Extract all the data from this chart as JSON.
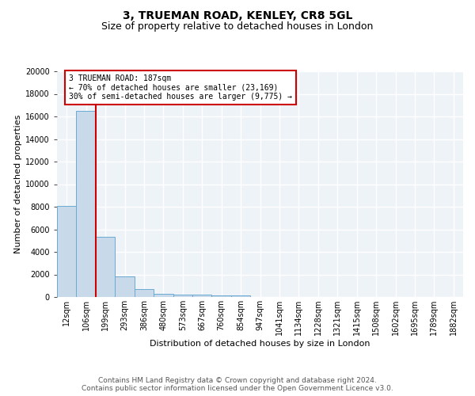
{
  "title": "3, TRUEMAN ROAD, KENLEY, CR8 5GL",
  "subtitle": "Size of property relative to detached houses in London",
  "xlabel": "Distribution of detached houses by size in London",
  "ylabel": "Number of detached properties",
  "bin_labels": [
    "12sqm",
    "106sqm",
    "199sqm",
    "293sqm",
    "386sqm",
    "480sqm",
    "573sqm",
    "667sqm",
    "760sqm",
    "854sqm",
    "947sqm",
    "1041sqm",
    "1134sqm",
    "1228sqm",
    "1321sqm",
    "1415sqm",
    "1508sqm",
    "1602sqm",
    "1695sqm",
    "1789sqm",
    "1882sqm"
  ],
  "bar_heights": [
    8100,
    16500,
    5300,
    1850,
    700,
    300,
    220,
    180,
    160,
    130,
    0,
    0,
    0,
    0,
    0,
    0,
    0,
    0,
    0,
    0,
    0
  ],
  "bar_color": "#c8d9ea",
  "bar_edge_color": "#6aaad4",
  "ylim": [
    0,
    20000
  ],
  "yticks": [
    0,
    2000,
    4000,
    6000,
    8000,
    10000,
    12000,
    14000,
    16000,
    18000,
    20000
  ],
  "property_line_bin": 2,
  "property_line_color": "#cc0000",
  "annotation_text": "3 TRUEMAN ROAD: 187sqm\n← 70% of detached houses are smaller (23,169)\n30% of semi-detached houses are larger (9,775) →",
  "annotation_box_color": "#ffffff",
  "annotation_box_edge": "#cc0000",
  "footer_text": "Contains HM Land Registry data © Crown copyright and database right 2024.\nContains public sector information licensed under the Open Government Licence v3.0.",
  "background_color": "#eef3f8",
  "grid_color": "#ffffff",
  "fig_background": "#ffffff",
  "title_fontsize": 10,
  "subtitle_fontsize": 9,
  "ylabel_fontsize": 8,
  "xlabel_fontsize": 8,
  "tick_fontsize": 7,
  "annotation_fontsize": 7,
  "footer_fontsize": 6.5
}
